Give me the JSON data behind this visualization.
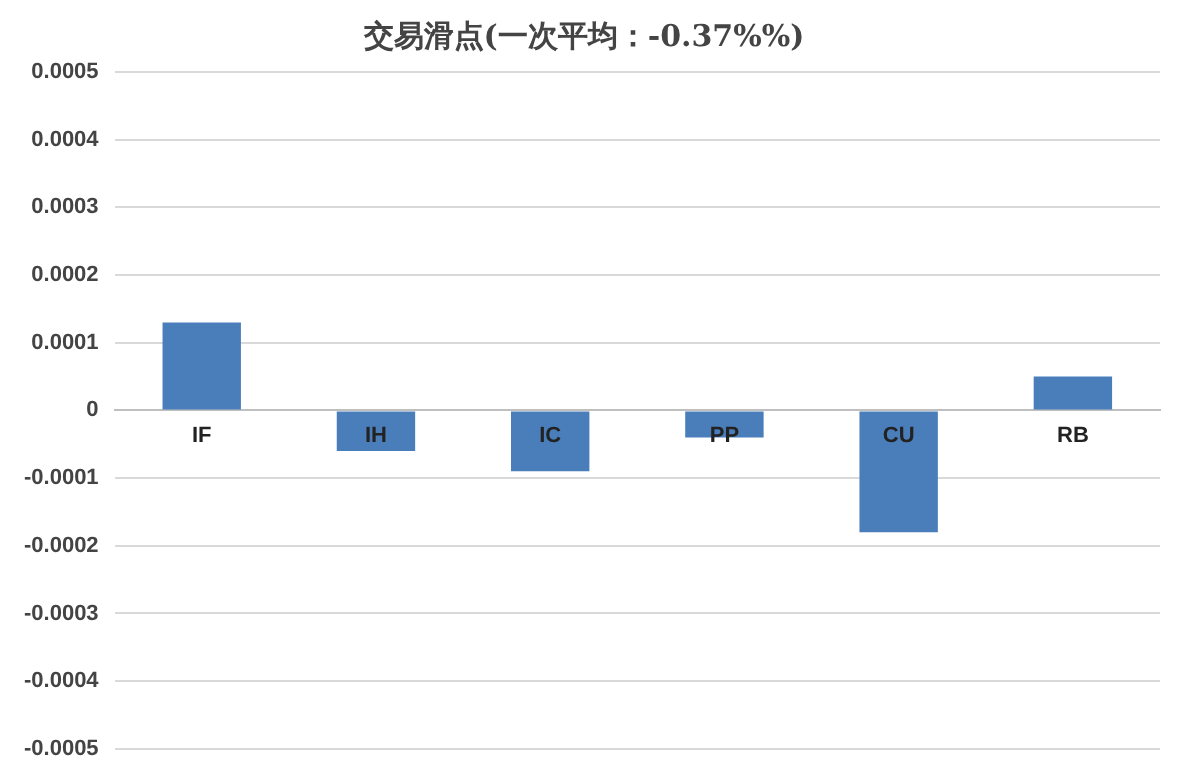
{
  "chart_data": {
    "type": "bar",
    "title": "交易滑点(一次平均：-0.37%%)",
    "categories": [
      "IF",
      "IH",
      "IC",
      "PP",
      "CU",
      "RB"
    ],
    "values": [
      0.00013,
      -6e-05,
      -9e-05,
      -4e-05,
      -0.00018,
      5e-05
    ],
    "color": "#4a7ebb",
    "ylim": [
      -0.0005,
      0.0005
    ],
    "yticks": [
      -0.0005,
      -0.0004,
      -0.0003,
      -0.0002,
      -0.0001,
      0,
      0.0001,
      0.0002,
      0.0003,
      0.0004,
      0.0005
    ],
    "grid": "y"
  }
}
